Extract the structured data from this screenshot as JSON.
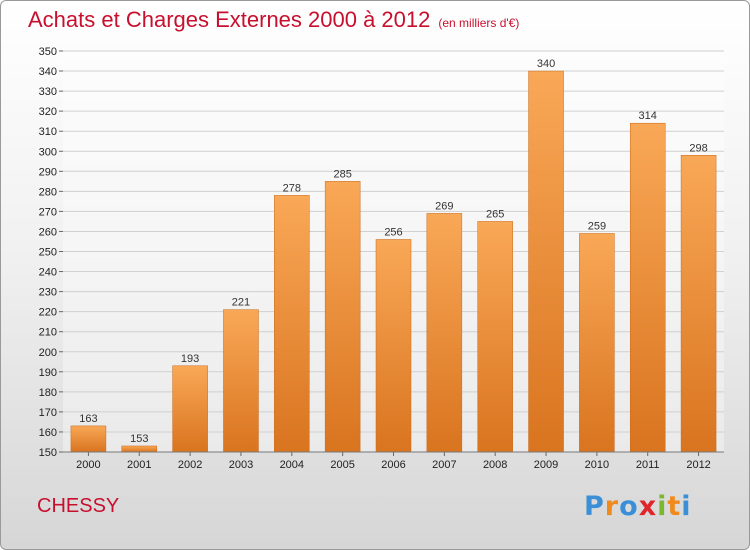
{
  "title": "Achats et Charges Externes 2000 à 2012",
  "subtitle": "(en milliers d'€)",
  "commune": "CHESSY",
  "logo": {
    "text": "Proxiti",
    "letters": [
      "P",
      "r",
      "o",
      "x",
      "i",
      "t",
      "i"
    ],
    "colors": [
      "#3a8fd6",
      "#f08a1c",
      "#3a8fd6",
      "#e0242c",
      "#7cb82f",
      "#f08a1c",
      "#3a8fd6"
    ]
  },
  "colors": {
    "bar_top": "#f9a857",
    "bar_bottom": "#d9741f",
    "title": "#c8102e",
    "grid": "#d0d0d0"
  },
  "chart_data": {
    "type": "bar",
    "title": "Achats et Charges Externes 2000 à 2012",
    "subtitle": "(en milliers d'€)",
    "categories": [
      "2000",
      "2001",
      "2002",
      "2003",
      "2004",
      "2005",
      "2006",
      "2007",
      "2008",
      "2009",
      "2010",
      "2011",
      "2012"
    ],
    "values": [
      163,
      153,
      193,
      221,
      278,
      285,
      256,
      269,
      265,
      340,
      259,
      314,
      298
    ],
    "ylim": [
      150,
      350
    ],
    "yticks": [
      150,
      160,
      170,
      180,
      190,
      200,
      210,
      220,
      230,
      240,
      250,
      260,
      270,
      280,
      290,
      300,
      310,
      320,
      330,
      340,
      350
    ],
    "grid": true,
    "xlabel": "",
    "ylabel": ""
  }
}
